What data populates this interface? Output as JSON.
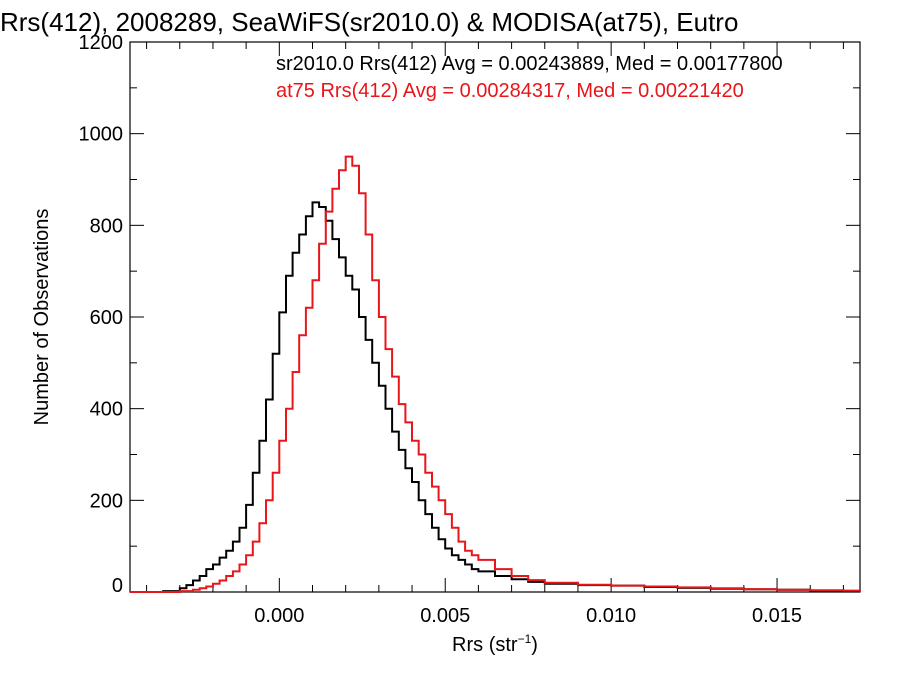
{
  "chart_data": {
    "type": "line",
    "title": "Rrs(412), 2008289, SeaWiFS(sr2010.0) & MODISA(at75), Eutro",
    "xlabel": "Rrs (str",
    "xlabel_sup": "−1",
    "xlabel_close": ")",
    "ylabel": "Number of Observations",
    "xlim": [
      -0.0045,
      0.0175
    ],
    "ylim": [
      0,
      1200
    ],
    "xticks": [
      0.0,
      0.005,
      0.01,
      0.015
    ],
    "xtick_labels": [
      "0.000",
      "0.005",
      "0.010",
      "0.015"
    ],
    "yticks": [
      0,
      200,
      400,
      600,
      800,
      1000,
      1200
    ],
    "ytick_labels": [
      "0",
      "200",
      "400",
      "600",
      "800",
      "1000",
      "1200"
    ],
    "grid": false,
    "legend_position": "top-right",
    "series": [
      {
        "name": "sr2010.0 Rrs(412) Avg = 0.00243889, Med = 0.00177800",
        "color": "#000000",
        "x": [
          -0.0045,
          -0.004,
          -0.0035,
          -0.003,
          -0.0028,
          -0.0026,
          -0.0024,
          -0.0022,
          -0.002,
          -0.0018,
          -0.0016,
          -0.0014,
          -0.0012,
          -0.001,
          -0.0008,
          -0.0006,
          -0.0004,
          -0.0002,
          0.0,
          0.0002,
          0.0004,
          0.0006,
          0.0008,
          0.001,
          0.0012,
          0.0014,
          0.0016,
          0.0018,
          0.002,
          0.0022,
          0.0024,
          0.0026,
          0.0028,
          0.003,
          0.0032,
          0.0034,
          0.0036,
          0.0038,
          0.004,
          0.0042,
          0.0044,
          0.0046,
          0.0048,
          0.005,
          0.0052,
          0.0054,
          0.0056,
          0.0058,
          0.006,
          0.0065,
          0.007,
          0.0075,
          0.008,
          0.009,
          0.01,
          0.011,
          0.012,
          0.013,
          0.014,
          0.015,
          0.016,
          0.017,
          0.0175
        ],
        "values": [
          0,
          0,
          2,
          8,
          15,
          25,
          35,
          50,
          60,
          75,
          90,
          110,
          140,
          190,
          260,
          330,
          420,
          520,
          610,
          690,
          740,
          780,
          820,
          850,
          840,
          810,
          770,
          730,
          690,
          660,
          600,
          550,
          500,
          450,
          400,
          350,
          310,
          270,
          240,
          200,
          170,
          140,
          115,
          95,
          80,
          70,
          60,
          50,
          45,
          35,
          28,
          22,
          18,
          15,
          14,
          11,
          9,
          7,
          6,
          5,
          3,
          2,
          2
        ]
      },
      {
        "name": "at75 Rrs(412) Avg = 0.00284317, Med = 0.00221420",
        "color": "#e8161a",
        "x": [
          -0.0045,
          -0.004,
          -0.0035,
          -0.003,
          -0.0026,
          -0.0024,
          -0.0022,
          -0.002,
          -0.0018,
          -0.0016,
          -0.0014,
          -0.0012,
          -0.001,
          -0.0008,
          -0.0006,
          -0.0004,
          -0.0002,
          0.0,
          0.0002,
          0.0004,
          0.0006,
          0.0008,
          0.001,
          0.0012,
          0.0014,
          0.0016,
          0.0018,
          0.002,
          0.0022,
          0.0024,
          0.0026,
          0.0028,
          0.003,
          0.0032,
          0.0034,
          0.0036,
          0.0038,
          0.004,
          0.0042,
          0.0044,
          0.0046,
          0.0048,
          0.005,
          0.0052,
          0.0054,
          0.0056,
          0.0058,
          0.006,
          0.0065,
          0.007,
          0.0075,
          0.008,
          0.009,
          0.01,
          0.011,
          0.012,
          0.013,
          0.014,
          0.015,
          0.016,
          0.017,
          0.0175
        ],
        "values": [
          0,
          0,
          0,
          2,
          5,
          8,
          12,
          18,
          25,
          35,
          45,
          60,
          80,
          110,
          150,
          200,
          260,
          330,
          400,
          480,
          560,
          620,
          680,
          760,
          830,
          880,
          920,
          950,
          930,
          870,
          780,
          680,
          600,
          530,
          470,
          410,
          370,
          330,
          300,
          260,
          230,
          200,
          170,
          140,
          110,
          90,
          80,
          70,
          50,
          35,
          26,
          20,
          16,
          14,
          12,
          10,
          8,
          6,
          5,
          4,
          3,
          2
        ]
      }
    ]
  }
}
